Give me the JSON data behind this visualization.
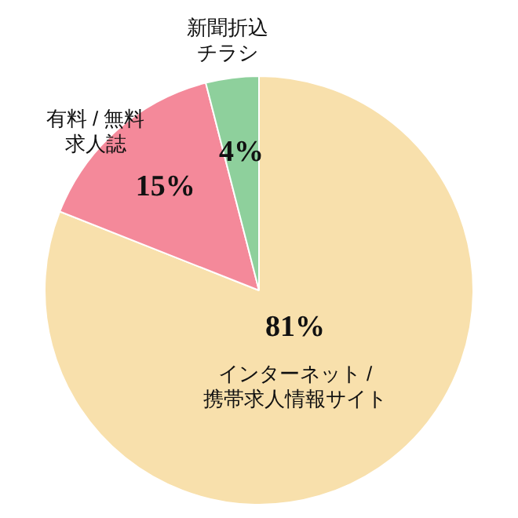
{
  "chart_data": {
    "type": "pie",
    "categories": [
      "インターネット / 携帯求人情報サイト",
      "有料 / 無料求人誌",
      "新聞折込チラシ"
    ],
    "values": [
      81,
      15,
      4
    ],
    "value_labels": [
      "81%",
      "15%",
      "4%"
    ],
    "colors": [
      "#f8e0ac",
      "#f4899a",
      "#8ed09c"
    ],
    "legend": false
  }
}
